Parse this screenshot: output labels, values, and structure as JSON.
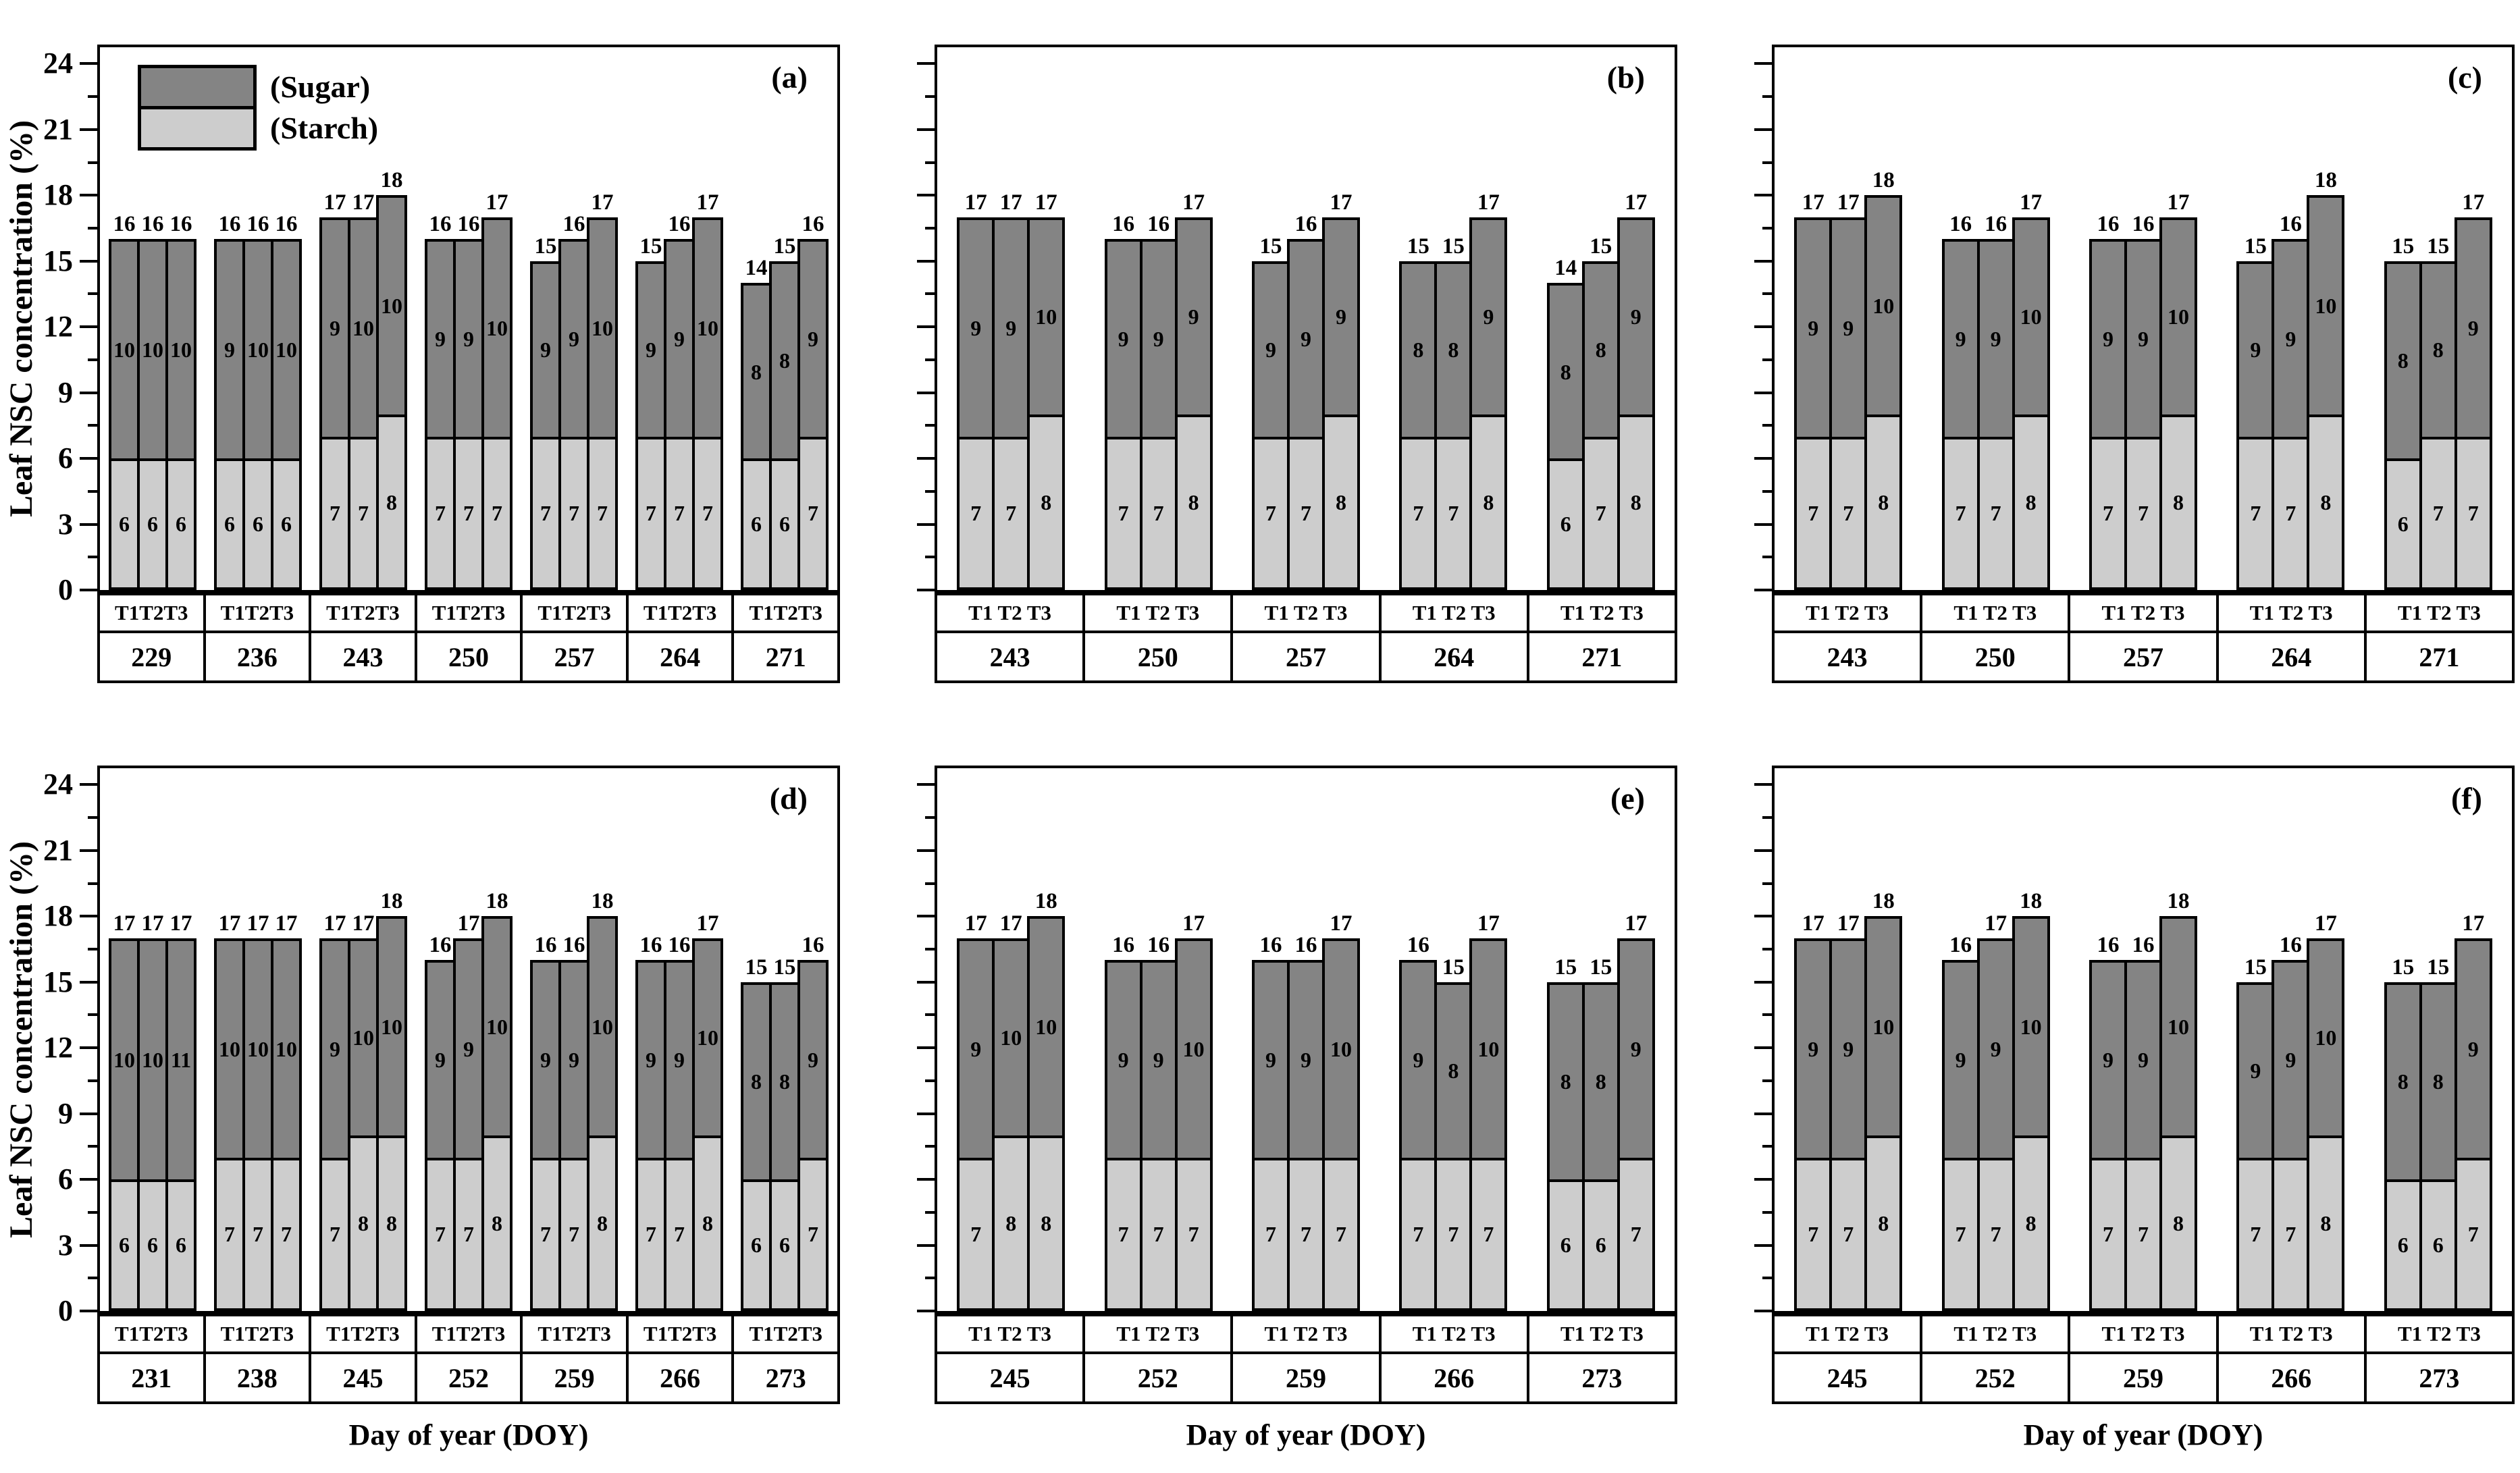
{
  "figure": {
    "y_axis": {
      "title": "Leaf NSC concentration (%)",
      "ticks": [
        "0",
        "3",
        "6",
        "9",
        "12",
        "15",
        "18",
        "21",
        "24"
      ],
      "tick_values": [
        0,
        3,
        6,
        9,
        12,
        15,
        18,
        21,
        24
      ],
      "axis_max": 24.75,
      "major_step": 3,
      "minor_step": 1.5,
      "grid": false
    },
    "x_axis": {
      "title": "Day of year (DOY)"
    },
    "legend": {
      "position": "top-left of panel (a)",
      "items": [
        {
          "label": "(Sugar)",
          "color": "#848484"
        },
        {
          "label": "(Starch)",
          "color": "#cdcdcd"
        }
      ]
    },
    "colors": {
      "sugar": "#848484",
      "starch": "#cdcdcd",
      "border": "#000000"
    },
    "treatments": [
      "T1",
      "T2",
      "T3"
    ]
  },
  "chart_data": [
    {
      "type": "bar",
      "stacked": true,
      "panel": "(a)",
      "show_y_labels": true,
      "show_x_title": false,
      "show_legend": true,
      "t_row": "T1T2T3",
      "groups": [
        {
          "doy": "229",
          "bars": [
            {
              "t": "T1",
              "starch": 6,
              "sugar": 10,
              "total": 16
            },
            {
              "t": "T2",
              "starch": 6,
              "sugar": 10,
              "total": 16
            },
            {
              "t": "T3",
              "starch": 6,
              "sugar": 10,
              "total": 16
            }
          ]
        },
        {
          "doy": "236",
          "bars": [
            {
              "t": "T1",
              "starch": 6,
              "sugar": 9,
              "total": 16
            },
            {
              "t": "T2",
              "starch": 6,
              "sugar": 10,
              "total": 16
            },
            {
              "t": "T3",
              "starch": 6,
              "sugar": 10,
              "total": 16
            }
          ]
        },
        {
          "doy": "243",
          "bars": [
            {
              "t": "T1",
              "starch": 7,
              "sugar": 9,
              "total": 17
            },
            {
              "t": "T2",
              "starch": 7,
              "sugar": 10,
              "total": 17
            },
            {
              "t": "T3",
              "starch": 8,
              "sugar": 10,
              "total": 18
            }
          ]
        },
        {
          "doy": "250",
          "bars": [
            {
              "t": "T1",
              "starch": 7,
              "sugar": 9,
              "total": 16
            },
            {
              "t": "T2",
              "starch": 7,
              "sugar": 9,
              "total": 16
            },
            {
              "t": "T3",
              "starch": 7,
              "sugar": 10,
              "total": 17
            }
          ]
        },
        {
          "doy": "257",
          "bars": [
            {
              "t": "T1",
              "starch": 7,
              "sugar": 9,
              "total": 15
            },
            {
              "t": "T2",
              "starch": 7,
              "sugar": 9,
              "total": 16
            },
            {
              "t": "T3",
              "starch": 7,
              "sugar": 10,
              "total": 17
            }
          ]
        },
        {
          "doy": "264",
          "bars": [
            {
              "t": "T1",
              "starch": 7,
              "sugar": 9,
              "total": 15
            },
            {
              "t": "T2",
              "starch": 7,
              "sugar": 9,
              "total": 16
            },
            {
              "t": "T3",
              "starch": 7,
              "sugar": 10,
              "total": 17
            }
          ]
        },
        {
          "doy": "271",
          "bars": [
            {
              "t": "T1",
              "starch": 6,
              "sugar": 8,
              "total": 14
            },
            {
              "t": "T2",
              "starch": 6,
              "sugar": 8,
              "total": 15
            },
            {
              "t": "T3",
              "starch": 7,
              "sugar": 9,
              "total": 16
            }
          ]
        }
      ]
    },
    {
      "type": "bar",
      "stacked": true,
      "panel": "(b)",
      "show_y_labels": false,
      "show_x_title": false,
      "show_legend": false,
      "t_row": "T1 T2 T3",
      "groups": [
        {
          "doy": "243",
          "bars": [
            {
              "t": "T1",
              "starch": 7,
              "sugar": 9,
              "total": 17
            },
            {
              "t": "T2",
              "starch": 7,
              "sugar": 9,
              "total": 17
            },
            {
              "t": "T3",
              "starch": 8,
              "sugar": 10,
              "total": 17
            }
          ]
        },
        {
          "doy": "250",
          "bars": [
            {
              "t": "T1",
              "starch": 7,
              "sugar": 9,
              "total": 16
            },
            {
              "t": "T2",
              "starch": 7,
              "sugar": 9,
              "total": 16
            },
            {
              "t": "T3",
              "starch": 8,
              "sugar": 9,
              "total": 17
            }
          ]
        },
        {
          "doy": "257",
          "bars": [
            {
              "t": "T1",
              "starch": 7,
              "sugar": 9,
              "total": 15
            },
            {
              "t": "T2",
              "starch": 7,
              "sugar": 9,
              "total": 16
            },
            {
              "t": "T3",
              "starch": 8,
              "sugar": 9,
              "total": 17
            }
          ]
        },
        {
          "doy": "264",
          "bars": [
            {
              "t": "T1",
              "starch": 7,
              "sugar": 8,
              "total": 15
            },
            {
              "t": "T2",
              "starch": 7,
              "sugar": 8,
              "total": 15
            },
            {
              "t": "T3",
              "starch": 8,
              "sugar": 9,
              "total": 17
            }
          ]
        },
        {
          "doy": "271",
          "bars": [
            {
              "t": "T1",
              "starch": 6,
              "sugar": 8,
              "total": 14
            },
            {
              "t": "T2",
              "starch": 7,
              "sugar": 8,
              "total": 15
            },
            {
              "t": "T3",
              "starch": 8,
              "sugar": 9,
              "total": 17
            }
          ]
        }
      ]
    },
    {
      "type": "bar",
      "stacked": true,
      "panel": "(c)",
      "show_y_labels": false,
      "show_x_title": false,
      "show_legend": false,
      "t_row": "T1 T2 T3",
      "groups": [
        {
          "doy": "243",
          "bars": [
            {
              "t": "T1",
              "starch": 7,
              "sugar": 9,
              "total": 17
            },
            {
              "t": "T2",
              "starch": 7,
              "sugar": 9,
              "total": 17
            },
            {
              "t": "T3",
              "starch": 8,
              "sugar": 10,
              "total": 18
            }
          ]
        },
        {
          "doy": "250",
          "bars": [
            {
              "t": "T1",
              "starch": 7,
              "sugar": 9,
              "total": 16
            },
            {
              "t": "T2",
              "starch": 7,
              "sugar": 9,
              "total": 16
            },
            {
              "t": "T3",
              "starch": 8,
              "sugar": 10,
              "total": 17
            }
          ]
        },
        {
          "doy": "257",
          "bars": [
            {
              "t": "T1",
              "starch": 7,
              "sugar": 9,
              "total": 16
            },
            {
              "t": "T2",
              "starch": 7,
              "sugar": 9,
              "total": 16
            },
            {
              "t": "T3",
              "starch": 8,
              "sugar": 10,
              "total": 17
            }
          ]
        },
        {
          "doy": "264",
          "bars": [
            {
              "t": "T1",
              "starch": 7,
              "sugar": 9,
              "total": 15
            },
            {
              "t": "T2",
              "starch": 7,
              "sugar": 9,
              "total": 16
            },
            {
              "t": "T3",
              "starch": 8,
              "sugar": 10,
              "total": 18
            }
          ]
        },
        {
          "doy": "271",
          "bars": [
            {
              "t": "T1",
              "starch": 6,
              "sugar": 8,
              "total": 15
            },
            {
              "t": "T2",
              "starch": 7,
              "sugar": 8,
              "total": 15
            },
            {
              "t": "T3",
              "starch": 7,
              "sugar": 9,
              "total": 17
            }
          ]
        }
      ]
    },
    {
      "type": "bar",
      "stacked": true,
      "panel": "(d)",
      "show_y_labels": true,
      "show_x_title": true,
      "show_legend": false,
      "t_row": "T1T2T3",
      "groups": [
        {
          "doy": "231",
          "bars": [
            {
              "t": "T1",
              "starch": 6,
              "sugar": 10,
              "total": 17
            },
            {
              "t": "T2",
              "starch": 6,
              "sugar": 10,
              "total": 17
            },
            {
              "t": "T3",
              "starch": 6,
              "sugar": 11,
              "total": 17
            }
          ]
        },
        {
          "doy": "238",
          "bars": [
            {
              "t": "T1",
              "starch": 7,
              "sugar": 10,
              "total": 17
            },
            {
              "t": "T2",
              "starch": 7,
              "sugar": 10,
              "total": 17
            },
            {
              "t": "T3",
              "starch": 7,
              "sugar": 10,
              "total": 17
            }
          ]
        },
        {
          "doy": "245",
          "bars": [
            {
              "t": "T1",
              "starch": 7,
              "sugar": 9,
              "total": 17
            },
            {
              "t": "T2",
              "starch": 8,
              "sugar": 10,
              "total": 17
            },
            {
              "t": "T3",
              "starch": 8,
              "sugar": 10,
              "total": 18
            }
          ]
        },
        {
          "doy": "252",
          "bars": [
            {
              "t": "T1",
              "starch": 7,
              "sugar": 9,
              "total": 16
            },
            {
              "t": "T2",
              "starch": 7,
              "sugar": 9,
              "total": 17
            },
            {
              "t": "T3",
              "starch": 8,
              "sugar": 10,
              "total": 18
            }
          ]
        },
        {
          "doy": "259",
          "bars": [
            {
              "t": "T1",
              "starch": 7,
              "sugar": 9,
              "total": 16
            },
            {
              "t": "T2",
              "starch": 7,
              "sugar": 9,
              "total": 16
            },
            {
              "t": "T3",
              "starch": 8,
              "sugar": 10,
              "total": 18
            }
          ]
        },
        {
          "doy": "266",
          "bars": [
            {
              "t": "T1",
              "starch": 7,
              "sugar": 9,
              "total": 16
            },
            {
              "t": "T2",
              "starch": 7,
              "sugar": 9,
              "total": 16
            },
            {
              "t": "T3",
              "starch": 8,
              "sugar": 10,
              "total": 17
            }
          ]
        },
        {
          "doy": "273",
          "bars": [
            {
              "t": "T1",
              "starch": 6,
              "sugar": 8,
              "total": 15
            },
            {
              "t": "T2",
              "starch": 6,
              "sugar": 8,
              "total": 15
            },
            {
              "t": "T3",
              "starch": 7,
              "sugar": 9,
              "total": 16
            }
          ]
        }
      ]
    },
    {
      "type": "bar",
      "stacked": true,
      "panel": "(e)",
      "show_y_labels": false,
      "show_x_title": true,
      "show_legend": false,
      "t_row": "T1 T2 T3",
      "groups": [
        {
          "doy": "245",
          "bars": [
            {
              "t": "T1",
              "starch": 7,
              "sugar": 9,
              "total": 17
            },
            {
              "t": "T2",
              "starch": 8,
              "sugar": 10,
              "total": 17
            },
            {
              "t": "T3",
              "starch": 8,
              "sugar": 10,
              "total": 18
            }
          ]
        },
        {
          "doy": "252",
          "bars": [
            {
              "t": "T1",
              "starch": 7,
              "sugar": 9,
              "total": 16
            },
            {
              "t": "T2",
              "starch": 7,
              "sugar": 9,
              "total": 16
            },
            {
              "t": "T3",
              "starch": 7,
              "sugar": 10,
              "total": 17
            }
          ]
        },
        {
          "doy": "259",
          "bars": [
            {
              "t": "T1",
              "starch": 7,
              "sugar": 9,
              "total": 16
            },
            {
              "t": "T2",
              "starch": 7,
              "sugar": 9,
              "total": 16
            },
            {
              "t": "T3",
              "starch": 7,
              "sugar": 10,
              "total": 17
            }
          ]
        },
        {
          "doy": "266",
          "bars": [
            {
              "t": "T1",
              "starch": 7,
              "sugar": 9,
              "total": 16
            },
            {
              "t": "T2",
              "starch": 7,
              "sugar": 8,
              "total": 15
            },
            {
              "t": "T3",
              "starch": 7,
              "sugar": 10,
              "total": 17
            }
          ]
        },
        {
          "doy": "273",
          "bars": [
            {
              "t": "T1",
              "starch": 6,
              "sugar": 8,
              "total": 15
            },
            {
              "t": "T2",
              "starch": 6,
              "sugar": 8,
              "total": 15
            },
            {
              "t": "T3",
              "starch": 7,
              "sugar": 9,
              "total": 17
            }
          ]
        }
      ]
    },
    {
      "type": "bar",
      "stacked": true,
      "panel": "(f)",
      "show_y_labels": false,
      "show_x_title": true,
      "show_legend": false,
      "t_row": "T1 T2 T3",
      "groups": [
        {
          "doy": "245",
          "bars": [
            {
              "t": "T1",
              "starch": 7,
              "sugar": 9,
              "total": 17
            },
            {
              "t": "T2",
              "starch": 7,
              "sugar": 9,
              "total": 17
            },
            {
              "t": "T3",
              "starch": 8,
              "sugar": 10,
              "total": 18
            }
          ]
        },
        {
          "doy": "252",
          "bars": [
            {
              "t": "T1",
              "starch": 7,
              "sugar": 9,
              "total": 16
            },
            {
              "t": "T2",
              "starch": 7,
              "sugar": 9,
              "total": 17
            },
            {
              "t": "T3",
              "starch": 8,
              "sugar": 10,
              "total": 18
            }
          ]
        },
        {
          "doy": "259",
          "bars": [
            {
              "t": "T1",
              "starch": 7,
              "sugar": 9,
              "total": 16
            },
            {
              "t": "T2",
              "starch": 7,
              "sugar": 9,
              "total": 16
            },
            {
              "t": "T3",
              "starch": 8,
              "sugar": 10,
              "total": 18
            }
          ]
        },
        {
          "doy": "266",
          "bars": [
            {
              "t": "T1",
              "starch": 7,
              "sugar": 9,
              "total": 15
            },
            {
              "t": "T2",
              "starch": 7,
              "sugar": 9,
              "total": 16
            },
            {
              "t": "T3",
              "starch": 8,
              "sugar": 10,
              "total": 17
            }
          ]
        },
        {
          "doy": "273",
          "bars": [
            {
              "t": "T1",
              "starch": 6,
              "sugar": 8,
              "total": 15
            },
            {
              "t": "T2",
              "starch": 6,
              "sugar": 8,
              "total": 15
            },
            {
              "t": "T3",
              "starch": 7,
              "sugar": 9,
              "total": 17
            }
          ]
        }
      ]
    }
  ]
}
